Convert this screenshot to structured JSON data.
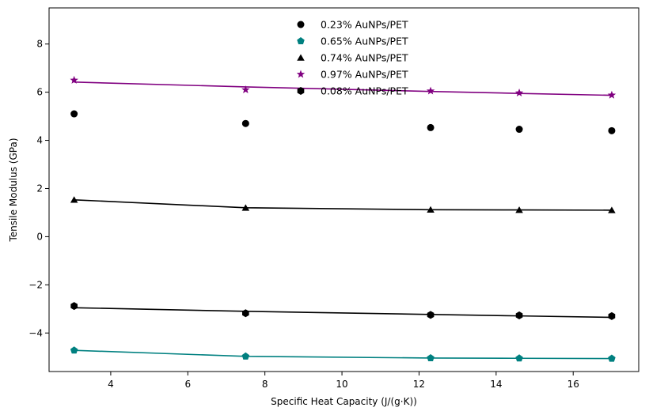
{
  "chart_data": {
    "type": "scatter",
    "title": "",
    "xlabel": "Specific Heat Capacity (J/(g·K))",
    "ylabel": "Tensile Modulus (GPa)",
    "xlim": [
      2.4,
      17.7
    ],
    "ylim": [
      -5.6,
      9.5
    ],
    "xticks": [
      4,
      6,
      8,
      10,
      12,
      14,
      16
    ],
    "yticks": [
      -4,
      -2,
      0,
      2,
      4,
      6,
      8
    ],
    "xtick_labels": [
      "4",
      "6",
      "8",
      "10",
      "12",
      "14",
      "16"
    ],
    "ytick_labels": [
      "−4",
      "−2",
      "0",
      "2",
      "4",
      "6",
      "8"
    ],
    "grid": false,
    "legend_position": "top-center",
    "x": [
      3.05,
      7.5,
      12.3,
      14.6,
      17.0
    ],
    "series": [
      {
        "name": "0.23% AuNPs/PET",
        "marker": "circle",
        "color": "#000000",
        "values": [
          5.1,
          4.7,
          4.53,
          4.46,
          4.4
        ],
        "fit": null
      },
      {
        "name": "0.65% AuNPs/PET",
        "marker": "pentagon",
        "color": "#008080",
        "values": [
          -4.72,
          -4.97,
          -5.04,
          -5.05,
          -5.06
        ],
        "fit": [
          -4.72,
          -4.97,
          -5.04,
          -5.05,
          -5.06
        ]
      },
      {
        "name": "0.74% AuNPs/PET",
        "marker": "triangle",
        "color": "#000000",
        "values": [
          1.53,
          1.2,
          1.12,
          1.11,
          1.1
        ],
        "fit": [
          1.53,
          1.2,
          1.12,
          1.11,
          1.1
        ]
      },
      {
        "name": "0.97% AuNPs/PET",
        "marker": "star",
        "color": "#800080",
        "values": [
          6.5,
          6.1,
          6.05,
          5.97,
          5.88
        ],
        "fit": [
          6.42,
          6.22,
          6.03,
          5.95,
          5.87
        ]
      },
      {
        "name": "0.08% AuNPs/PET",
        "marker": "hexagon",
        "color": "#000000",
        "values": [
          -2.88,
          -3.18,
          -3.25,
          -3.27,
          -3.3
        ],
        "fit": [
          -2.95,
          -3.1,
          -3.23,
          -3.29,
          -3.35
        ]
      }
    ]
  }
}
